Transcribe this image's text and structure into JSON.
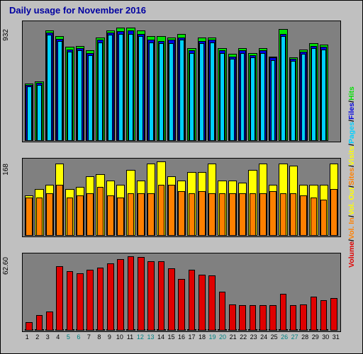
{
  "title": "Daily usage for November 2016",
  "title_color": "#0000a0",
  "title_fontsize": 13,
  "background_color": "#c0c0c0",
  "plot_background": "#808080",
  "days": [
    1,
    2,
    3,
    4,
    5,
    6,
    7,
    8,
    9,
    10,
    11,
    12,
    13,
    14,
    15,
    16,
    17,
    18,
    19,
    20,
    21,
    22,
    23,
    24,
    25,
    26,
    27,
    28,
    29,
    30,
    31
  ],
  "xlabel_colors": [
    "#000000",
    "#000000",
    "#000000",
    "#000000",
    "#008080",
    "#008080",
    "#000000",
    "#000000",
    "#000000",
    "#000000",
    "#000000",
    "#008080",
    "#008080",
    "#000000",
    "#000000",
    "#000000",
    "#000000",
    "#000000",
    "#008080",
    "#008080",
    "#000000",
    "#000000",
    "#000000",
    "#000000",
    "#000000",
    "#008080",
    "#008080",
    "#000000",
    "#000000",
    "#000000",
    "#000000"
  ],
  "top_panel": {
    "ylabel": "932",
    "ymax": 1000,
    "series": {
      "hits": {
        "color": "#00e000",
        "values": [
          480,
          500,
          930,
          880,
          790,
          800,
          760,
          870,
          930,
          955,
          955,
          930,
          880,
          880,
          870,
          900,
          780,
          870,
          870,
          780,
          730,
          780,
          740,
          780,
          710,
          940,
          700,
          770,
          820,
          810,
          null
        ]
      },
      "files": {
        "color": "#0000e0",
        "values": [
          470,
          490,
          910,
          860,
          770,
          780,
          740,
          850,
          910,
          920,
          930,
          900,
          850,
          840,
          850,
          870,
          760,
          840,
          850,
          760,
          710,
          760,
          720,
          760,
          700,
          900,
          690,
          750,
          800,
          790,
          null
        ]
      },
      "pages": {
        "color": "#00d0ff",
        "values": [
          460,
          470,
          890,
          840,
          750,
          760,
          720,
          830,
          890,
          900,
          900,
          880,
          830,
          820,
          820,
          850,
          740,
          820,
          830,
          740,
          690,
          740,
          700,
          740,
          680,
          880,
          670,
          730,
          780,
          770,
          null
        ]
      }
    }
  },
  "mid_panel": {
    "ylabel": "168",
    "ymax": 180,
    "series": {
      "visits": {
        "color": "#ffff00",
        "values": [
          95,
          110,
          120,
          170,
          110,
          115,
          140,
          145,
          130,
          120,
          155,
          130,
          170,
          175,
          140,
          130,
          150,
          150,
          170,
          130,
          130,
          125,
          155,
          170,
          120,
          170,
          165,
          120,
          120,
          120,
          170
        ]
      },
      "sites": {
        "color": "#ff8000",
        "values": [
          90,
          90,
          100,
          120,
          90,
          95,
          100,
          115,
          95,
          90,
          100,
          100,
          100,
          120,
          120,
          105,
          100,
          105,
          100,
          100,
          100,
          100,
          100,
          100,
          105,
          100,
          100,
          95,
          90,
          85,
          110
        ]
      }
    }
  },
  "bot_panel": {
    "ylabel": "62.60",
    "ymax": 75,
    "series": {
      "vol_in": {
        "color": "#0000d0",
        "values": [
          1,
          1,
          1,
          1,
          1,
          1,
          1,
          1,
          1,
          1,
          1,
          1,
          1,
          1,
          1,
          1,
          1,
          1,
          1,
          1,
          1,
          1,
          1,
          1,
          1,
          1,
          1,
          1,
          1,
          1,
          null
        ]
      },
      "volume": {
        "color": "#e00000",
        "values": [
          8,
          15,
          19,
          63,
          58,
          56,
          60,
          62,
          66,
          70,
          73,
          72,
          68,
          68,
          61,
          51,
          60,
          55,
          54,
          38,
          26,
          25,
          25,
          25,
          25,
          36,
          25,
          26,
          33,
          30,
          32
        ]
      }
    }
  },
  "legend": [
    {
      "color": "#e00000",
      "text": "Volume"
    },
    {
      "color": "#ff8000",
      "text": "Vol. In"
    },
    {
      "color": "#ffff00",
      "text": "Vol. Out"
    },
    {
      "color": "#ff8000",
      "text": "Sites"
    },
    {
      "color": "#ffff00",
      "text": "Visits"
    },
    {
      "color": "#00d0ff",
      "text": "Pages"
    },
    {
      "color": "#0000e0",
      "text": "Files"
    },
    {
      "color": "#00e000",
      "text": "Hits"
    }
  ]
}
